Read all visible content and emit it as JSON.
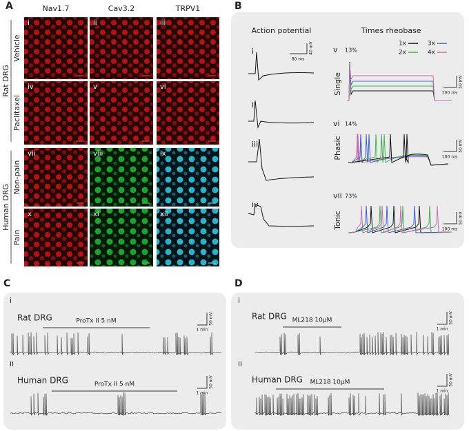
{
  "panel_a": {
    "label": "A",
    "columns": [
      "Nav1.7",
      "Cav3.2",
      "TRPV1"
    ],
    "groups": [
      {
        "label": "Rat DRG",
        "rows": [
          "Vehicle",
          "Paclitaxel"
        ]
      },
      {
        "label": "Human DRG",
        "rows": [
          "Non-pain",
          "Pain"
        ]
      }
    ],
    "tiles": [
      "i",
      "ii",
      "iii",
      "iv",
      "v",
      "vi",
      "vii",
      "viii",
      "ix",
      "x",
      "xi",
      "xii"
    ]
  },
  "panel_b": {
    "label": "B",
    "action_potential": {
      "title": "Action potential",
      "traces": [
        "i",
        "ii",
        "iii",
        "iv"
      ],
      "scale_v": "40 mV",
      "scale_t": "80 ms"
    },
    "rheobase": {
      "title": "Times rheobase",
      "legend": [
        "1x",
        "2x",
        "3x",
        "4x"
      ],
      "rows": [
        {
          "numeral": "v",
          "percent": "13%",
          "name": "Single",
          "scale_v": "50 mV",
          "scale_t": "100 ms"
        },
        {
          "numeral": "vi",
          "percent": "14%",
          "name": "Phasic",
          "scale_v": "50 mV",
          "scale_t": "100 ms"
        },
        {
          "numeral": "vii",
          "percent": "73%",
          "name": "Tonic",
          "scale_v": "50 mV",
          "scale_t": "100 ms"
        }
      ]
    }
  },
  "panel_c": {
    "label": "C",
    "recordings": [
      {
        "numeral": "i",
        "name": "Rat DRG",
        "drug": "ProTx II 5 nM",
        "scale_v": "50 mV",
        "scale_t": "1 min"
      },
      {
        "numeral": "ii",
        "name": "Human DRG",
        "drug": "ProTx II 5 nM",
        "scale_v": "50 mV",
        "scale_t": "1 min"
      }
    ]
  },
  "panel_d": {
    "label": "D",
    "recordings": [
      {
        "numeral": "i",
        "name": "Rat DRG",
        "drug": "ML218 10μM",
        "scale_v": "50 mV",
        "scale_t": "1 min"
      },
      {
        "numeral": "ii",
        "name": "Human DRG",
        "drug": "ML218 10μM",
        "scale_v": "50 mV",
        "scale_t": "1 min"
      }
    ]
  }
}
